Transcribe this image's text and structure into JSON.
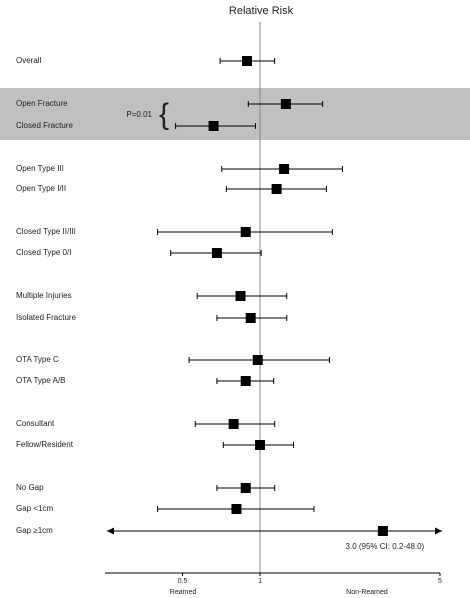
{
  "chart_data": {
    "type": "forest",
    "title": "Relative Risk",
    "categories": [
      "Overall",
      "Open Fracture",
      "Closed Fracture",
      "Open Type III",
      "Open Type I/II",
      "Closed Type II/III",
      "Closed Type 0/I",
      "Multiple Injuries",
      "Isolated Fracture",
      "OTA Type C",
      "OTA Type A/B",
      "Consultant",
      "Fellow/Resident",
      "No Gap",
      "Gap <1cm",
      "Gap ≥1cm"
    ],
    "values": [
      0.89,
      1.26,
      0.66,
      1.24,
      1.16,
      0.88,
      0.68,
      0.84,
      0.92,
      0.98,
      0.88,
      0.79,
      1.0,
      0.88,
      0.81,
      3.0
    ],
    "lower": [
      0.7,
      0.9,
      0.47,
      0.71,
      0.74,
      0.4,
      0.45,
      0.57,
      0.68,
      0.53,
      0.68,
      0.56,
      0.72,
      0.68,
      0.4,
      0.2
    ],
    "upper": [
      1.14,
      1.75,
      0.96,
      2.09,
      1.81,
      1.91,
      1.01,
      1.27,
      1.27,
      1.86,
      1.13,
      1.14,
      1.35,
      1.14,
      1.62,
      48.0
    ],
    "xlim": [
      0.25,
      5
    ],
    "xticks": [
      0.5,
      1,
      5
    ],
    "x_scale": "log",
    "reference": 1,
    "left_label": "Reamed",
    "right_label": "Non-Reamed",
    "p_value": "P=0.01",
    "ci_note": "3.0 (95% CI: 0.2-48.0)",
    "color": "#000000"
  }
}
